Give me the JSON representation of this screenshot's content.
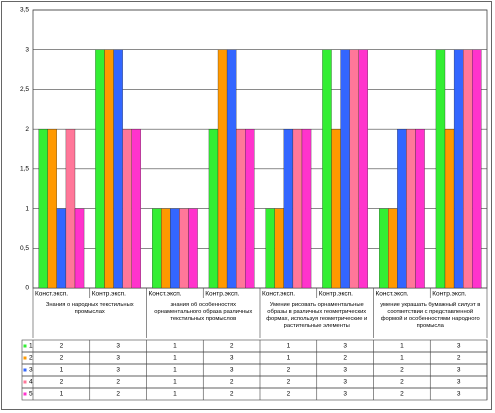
{
  "chart_data": {
    "type": "bar",
    "categories": [
      "Конст.эксп.",
      "Контр.эксп.",
      "Конст.эксп.",
      "Контр.эксп.",
      "Конст.эксп.",
      "Контр.эксп.",
      "Конст.эксп.",
      "Контр.эксп."
    ],
    "groups": [
      "Знания о народных текстильных промыслах",
      "знания об особенностях орнаментального образа различных текстильных промыслов",
      "Умение рисовать орнаментальные образы в различных геометрических формах, используя геометрические и растительные элементы",
      "умение украшать бумажный силуэт в соответствии с представленной формой и особенностями народного промысла"
    ],
    "series": [
      {
        "name": "1",
        "color": "#33ee33",
        "values": [
          2,
          3,
          1,
          2,
          1,
          3,
          1,
          3
        ]
      },
      {
        "name": "2",
        "color": "#ff9900",
        "values": [
          2,
          3,
          1,
          3,
          1,
          2,
          1,
          2
        ]
      },
      {
        "name": "3",
        "color": "#3366ff",
        "values": [
          1,
          3,
          1,
          3,
          2,
          3,
          2,
          3
        ]
      },
      {
        "name": "4",
        "color": "#ff7799",
        "values": [
          2,
          2,
          1,
          2,
          2,
          3,
          2,
          3
        ]
      },
      {
        "name": "5",
        "color": "#ff33cc",
        "values": [
          1,
          2,
          1,
          2,
          2,
          3,
          2,
          3
        ]
      }
    ],
    "ylim": [
      0,
      3.5
    ],
    "yticks": [
      0,
      {
        "value": 0.5,
        "label": "0,5"
      },
      1,
      {
        "value": 1.5,
        "label": "1,5"
      },
      2,
      {
        "value": 2.5,
        "label": "2,5"
      },
      3,
      {
        "value": 3.5,
        "label": "3,5"
      }
    ],
    "grid": true
  }
}
